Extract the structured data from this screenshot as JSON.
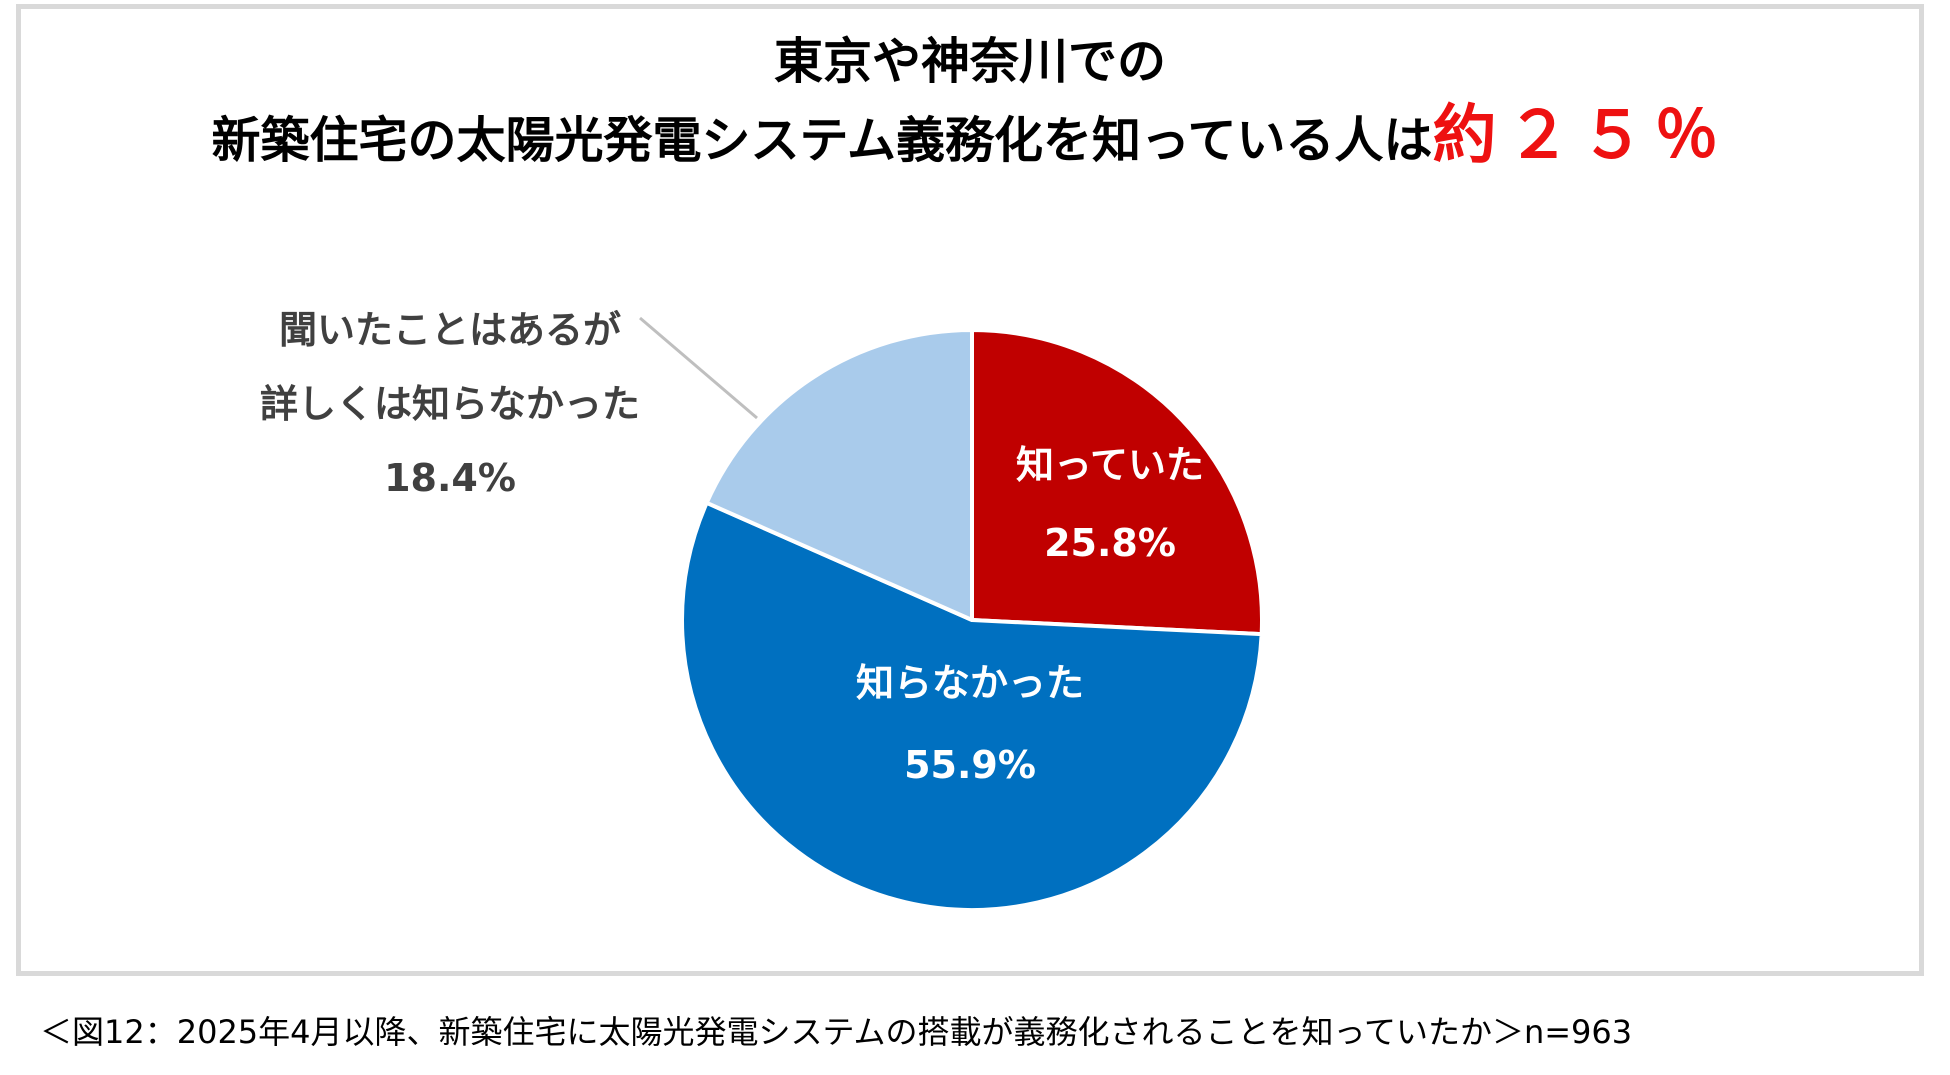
{
  "chart_data": {
    "type": "pie",
    "title_line1": "東京や神奈川での",
    "title_line2_main": "新築住宅の太陽光発電システム義務化を知っている人は",
    "title_line2_accent": "約２５％",
    "slices": [
      {
        "label_lines": [
          "知っていた"
        ],
        "value": 25.8,
        "value_label": "25.8%",
        "color": "#c00000",
        "text_color": "#ffffff"
      },
      {
        "label_lines": [
          "知らなかった"
        ],
        "value": 55.9,
        "value_label": "55.9%",
        "color": "#0070c0",
        "text_color": "#ffffff"
      },
      {
        "label_lines": [
          "聞いたことはあるが",
          "詳しくは知らなかった"
        ],
        "value": 18.4,
        "value_label": "18.4%",
        "color": "#a9cbeb",
        "text_color": "#404040"
      }
    ],
    "start_angle_deg": 0,
    "direction": "clockwise",
    "legend": "none"
  },
  "caption": "＜図12：2025年4月以降、新築住宅に太陽光発電システムの搭載が義務化されることを知っていたか＞n=963"
}
